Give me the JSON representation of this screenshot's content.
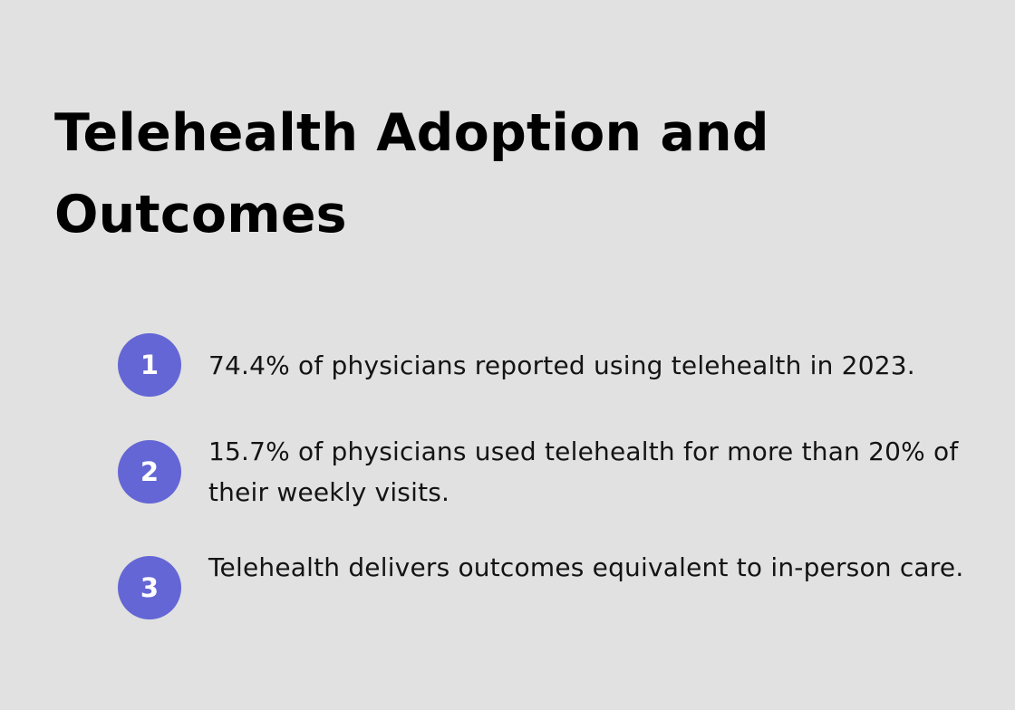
{
  "title": "Telehealth Adoption and Outcomes",
  "accent_color": "#6466d5",
  "items": [
    {
      "number": "1",
      "text": "74.4% of physicians reported using telehealth in 2023."
    },
    {
      "number": "2",
      "text": "15.7% of physicians used telehealth for more than 20% of their weekly visits."
    },
    {
      "number": "3",
      "text": "Telehealth delivers outcomes equivalent to in-person care."
    }
  ]
}
